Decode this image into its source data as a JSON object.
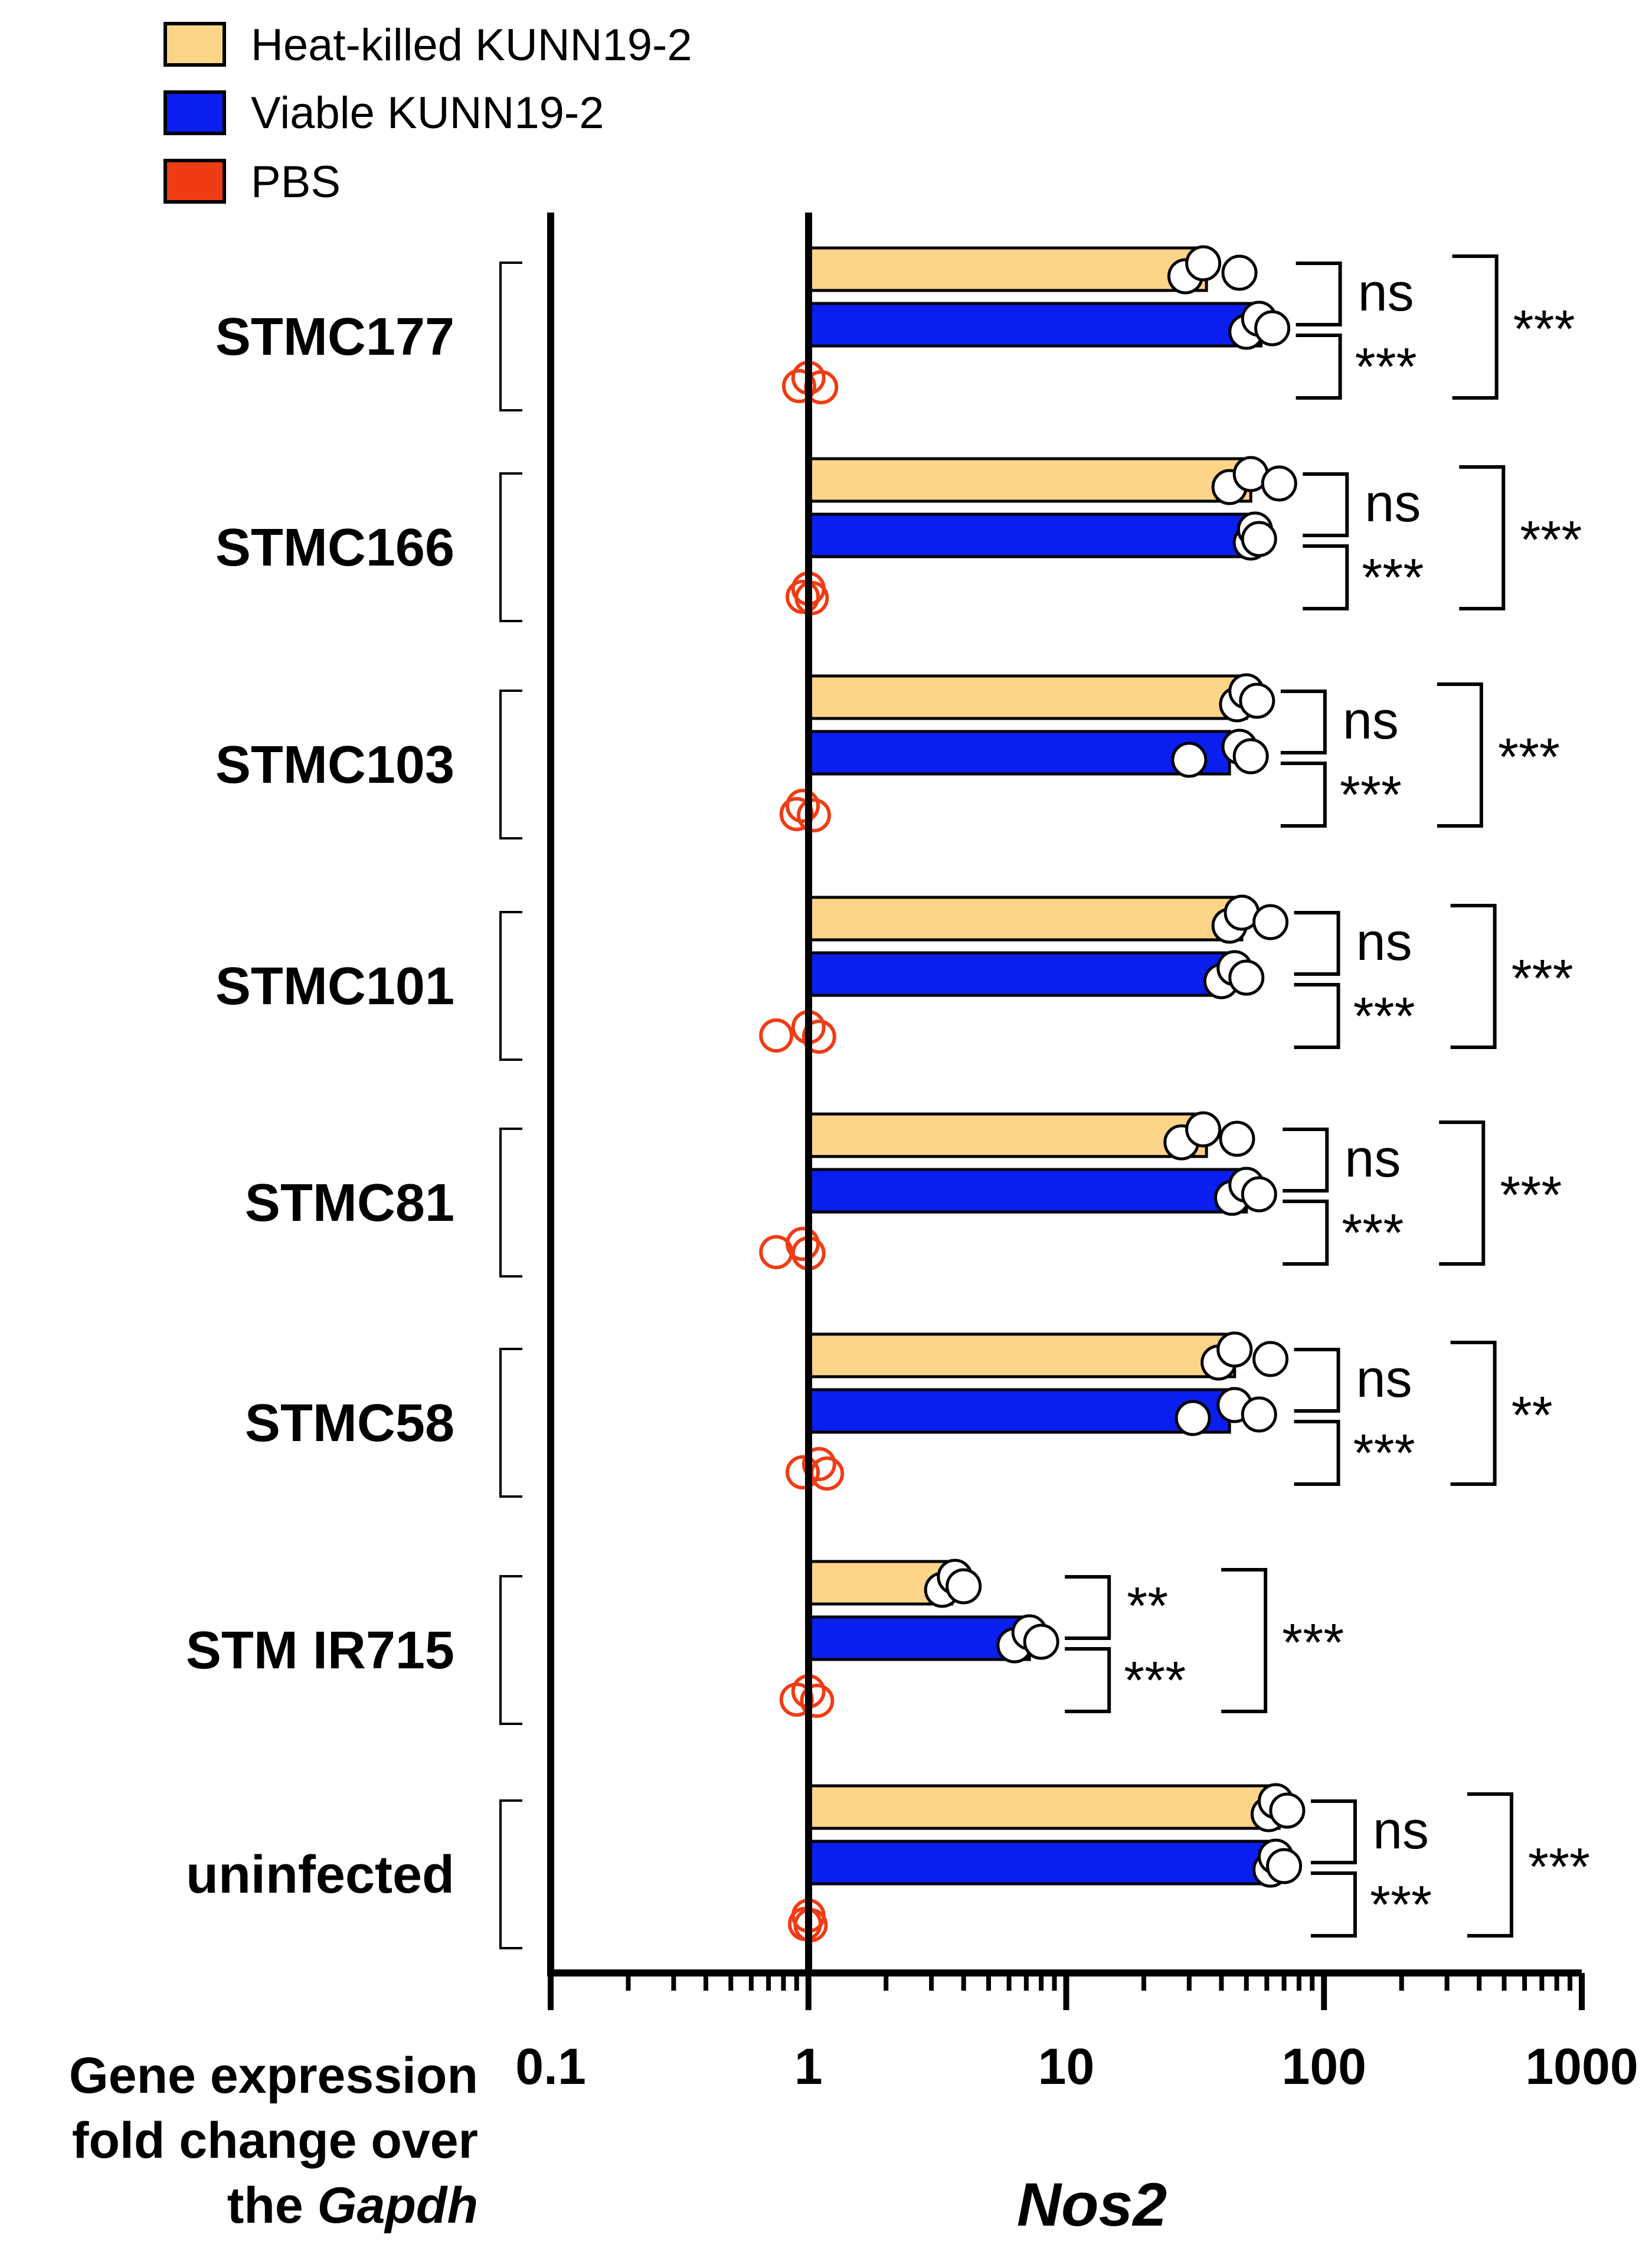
{
  "chart_data": {
    "type": "bar",
    "orientation": "horizontal",
    "xscale": "log",
    "xlim": [
      0.1,
      1000
    ],
    "xticks": [
      0.1,
      1,
      10,
      100,
      1000
    ],
    "xtick_labels": [
      "0.1",
      "1",
      "10",
      "100",
      "1000"
    ],
    "xlabel": "Nos2",
    "ylabel_lines": [
      "Gene expression",
      "fold change over",
      "the Gapdh"
    ],
    "legend": [
      {
        "name": "Heat-killed KUNN19-2",
        "color": "#FDD588"
      },
      {
        "name": "Viable KUNN19-2",
        "color": "#0A1EF0"
      },
      {
        "name": "PBS",
        "color": "#F03C14"
      }
    ],
    "categories": [
      "STMC177",
      "STMC166",
      "STMC103",
      "STMC101",
      "STMC81",
      "STMC58",
      "STM IR715",
      "uninfected"
    ],
    "series": [
      {
        "name": "Heat-killed KUNN19-2",
        "values": [
          35,
          52,
          50,
          48,
          35,
          45,
          3.6,
          67
        ],
        "points": [
          [
            29,
            34,
            47
          ],
          [
            43,
            52,
            67
          ],
          [
            46,
            50,
            55
          ],
          [
            43,
            48,
            62
          ],
          [
            28,
            34,
            46
          ],
          [
            39,
            45,
            62
          ],
          [
            3.3,
            3.7,
            4.0
          ],
          [
            61,
            65,
            72
          ]
        ]
      },
      {
        "name": "Viable KUNN19-2",
        "values": [
          57,
          55,
          43,
          43,
          50,
          43,
          7.2,
          66
        ],
        "points": [
          [
            50,
            56,
            63
          ],
          [
            52,
            54,
            56
          ],
          [
            30,
            47,
            52
          ],
          [
            40,
            45,
            50
          ],
          [
            44,
            50,
            56
          ],
          [
            31,
            45,
            56
          ],
          [
            6.3,
            7.2,
            8.0
          ],
          [
            62,
            65,
            70
          ]
        ]
      },
      {
        "name": "PBS",
        "values": [
          1,
          1,
          1,
          1,
          1,
          1,
          1,
          1
        ],
        "points": [
          [
            0.92,
            1.0,
            1.12
          ],
          [
            0.95,
            1.0,
            1.03
          ],
          [
            0.9,
            0.95,
            1.05
          ],
          [
            0.75,
            1.0,
            1.1
          ],
          [
            0.75,
            0.95,
            1.0
          ],
          [
            0.95,
            1.1,
            1.18
          ],
          [
            0.9,
            1.0,
            1.08
          ],
          [
            0.97,
            1.0,
            1.02
          ]
        ]
      }
    ],
    "significance": [
      {
        "category": "STMC177",
        "hk_vs_viable": "ns",
        "viable_vs_pbs": "***",
        "hk_vs_pbs": "***"
      },
      {
        "category": "STMC166",
        "hk_vs_viable": "ns",
        "viable_vs_pbs": "***",
        "hk_vs_pbs": "***"
      },
      {
        "category": "STMC103",
        "hk_vs_viable": "ns",
        "viable_vs_pbs": "***",
        "hk_vs_pbs": "***"
      },
      {
        "category": "STMC101",
        "hk_vs_viable": "ns",
        "viable_vs_pbs": "***",
        "hk_vs_pbs": "***"
      },
      {
        "category": "STMC81",
        "hk_vs_viable": "ns",
        "viable_vs_pbs": "***",
        "hk_vs_pbs": "***"
      },
      {
        "category": "STMC58",
        "hk_vs_viable": "ns",
        "viable_vs_pbs": "***",
        "hk_vs_pbs": "**"
      },
      {
        "category": "STM IR715",
        "hk_vs_viable": "**",
        "viable_vs_pbs": "***",
        "hk_vs_pbs": "***"
      },
      {
        "category": "uninfected",
        "hk_vs_viable": "ns",
        "viable_vs_pbs": "***",
        "hk_vs_pbs": "***"
      }
    ]
  }
}
